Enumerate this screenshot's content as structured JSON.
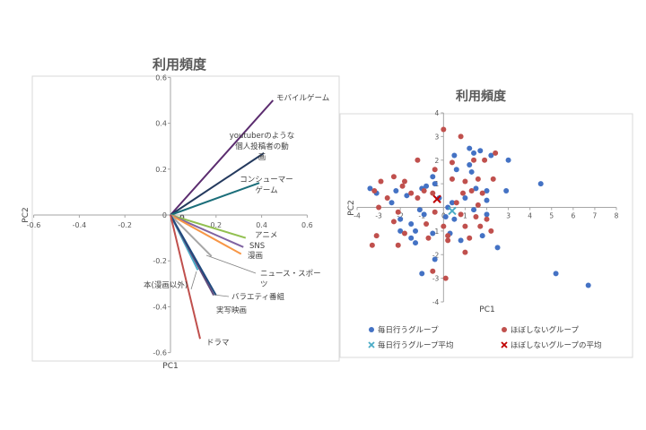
{
  "chart_data": [
    {
      "type": "vector",
      "title": "利用頻度",
      "xlabel": "PC1",
      "ylabel": "PC2",
      "xlim": [
        -0.6,
        0.6
      ],
      "ylim": [
        -0.6,
        0.6
      ],
      "xticks": [
        -0.6,
        -0.4,
        -0.2,
        0,
        0.2,
        0.4,
        0.6
      ],
      "yticks": [
        0.6,
        0.4,
        0.2,
        0,
        -0.2,
        -0.4,
        -0.6
      ],
      "vectors": [
        {
          "label": "モバイルゲーム",
          "x": 0.45,
          "y": 0.5,
          "color": "#5b2c6f"
        },
        {
          "label": "youtuberのような個人投稿者の動画",
          "x": 0.41,
          "y": 0.27,
          "color": "#243a5e"
        },
        {
          "label": "コンシューマーゲーム",
          "x": 0.39,
          "y": 0.14,
          "color": "#1b6e7a"
        },
        {
          "label": "アニメ",
          "x": 0.33,
          "y": -0.1,
          "color": "#92c050"
        },
        {
          "label": "SNS",
          "x": 0.32,
          "y": -0.14,
          "color": "#8064a2"
        },
        {
          "label": "漫画",
          "x": 0.31,
          "y": -0.17,
          "color": "#f79646"
        },
        {
          "label": "ニュース・スポーツ",
          "x": 0.18,
          "y": -0.18,
          "color": "#a6a6a6"
        },
        {
          "label": "本(漫画以外)",
          "x": 0.12,
          "y": -0.24,
          "color": "#4bacc6"
        },
        {
          "label": "バラエティ番組",
          "x": 0.19,
          "y": -0.35,
          "color": "#604a7b"
        },
        {
          "label": "実写映画",
          "x": 0.2,
          "y": -0.35,
          "color": "#1f497d"
        },
        {
          "label": "ドラマ",
          "x": 0.13,
          "y": -0.54,
          "color": "#c0504d"
        }
      ],
      "extra_ticks": [
        {
          "label": "0",
          "x": 0.04,
          "y": -0.01
        }
      ]
    },
    {
      "type": "scatter",
      "title": "利用頻度",
      "xlabel": "PC1",
      "ylabel": "PC2",
      "xlim": [
        -4,
        8
      ],
      "ylim": [
        -4,
        4
      ],
      "xticks": [
        -4,
        -3,
        -2,
        -1,
        0,
        1,
        2,
        3,
        4,
        5,
        6,
        7,
        8
      ],
      "yticks": [
        4,
        3,
        2,
        1,
        0,
        -1,
        -2,
        -3,
        -4
      ],
      "legend_position": "bottom",
      "series": [
        {
          "name": "毎日行うグループ",
          "marker": "circle",
          "color": "#4472c4",
          "points": [
            [
              1.7,
              2.4
            ],
            [
              0.5,
              2.2
            ],
            [
              1.2,
              2.5
            ],
            [
              1.4,
              2.3
            ],
            [
              2.2,
              2.2
            ],
            [
              3.0,
              2.0
            ],
            [
              1.2,
              1.8
            ],
            [
              0.6,
              1.6
            ],
            [
              1.3,
              1.5
            ],
            [
              -0.5,
              1.3
            ],
            [
              -0.4,
              1.0
            ],
            [
              -0.8,
              0.9
            ],
            [
              -1.0,
              0.8
            ],
            [
              1.5,
              0.8
            ],
            [
              2.0,
              0.7
            ],
            [
              2.9,
              0.7
            ],
            [
              4.5,
              1.0
            ],
            [
              -3.1,
              0.6
            ],
            [
              -3.4,
              0.8
            ],
            [
              -2.2,
              0.7
            ],
            [
              -1.7,
              0.5
            ],
            [
              -0.2,
              0.4
            ],
            [
              1.0,
              0.4
            ],
            [
              2.0,
              0.3
            ],
            [
              -2.4,
              0.2
            ],
            [
              0.4,
              0.2
            ],
            [
              0.2,
              0.0
            ],
            [
              -1.1,
              -0.1
            ],
            [
              -0.9,
              -0.3
            ],
            [
              1.4,
              -0.1
            ],
            [
              2.0,
              -0.3
            ],
            [
              -2.0,
              -0.5
            ],
            [
              -1.5,
              -0.7
            ],
            [
              0.1,
              -0.4
            ],
            [
              0.5,
              -0.5
            ],
            [
              -1.3,
              -1.0
            ],
            [
              -1.5,
              -1.3
            ],
            [
              -1.3,
              -1.5
            ],
            [
              -0.5,
              -1.1
            ],
            [
              0.8,
              -1.4
            ],
            [
              1.8,
              -1.2
            ],
            [
              2.5,
              -1.7
            ],
            [
              -0.4,
              -2.2
            ],
            [
              -1.0,
              -2.8
            ],
            [
              5.2,
              -2.8
            ],
            [
              6.7,
              -3.3
            ],
            [
              -2.0,
              -1.0
            ],
            [
              0.3,
              -1.1
            ]
          ]
        },
        {
          "name": "ほぼしないグループ",
          "marker": "circle",
          "color": "#c0504d",
          "points": [
            [
              0.0,
              3.3
            ],
            [
              0.8,
              3.0
            ],
            [
              0.4,
              1.9
            ],
            [
              1.4,
              2.0
            ],
            [
              1.9,
              2.0
            ],
            [
              2.4,
              2.3
            ],
            [
              -1.2,
              2.0
            ],
            [
              -0.4,
              1.6
            ],
            [
              -2.3,
              1.3
            ],
            [
              -1.8,
              1.1
            ],
            [
              -2.9,
              1.1
            ],
            [
              0.4,
              1.2
            ],
            [
              1.0,
              1.1
            ],
            [
              1.6,
              1.2
            ],
            [
              2.3,
              1.2
            ],
            [
              -3.2,
              0.7
            ],
            [
              -1.9,
              0.9
            ],
            [
              -1.5,
              0.6
            ],
            [
              -0.9,
              0.7
            ],
            [
              -0.5,
              0.6
            ],
            [
              0.9,
              0.6
            ],
            [
              1.3,
              0.7
            ],
            [
              1.8,
              0.6
            ],
            [
              -2.6,
              0.4
            ],
            [
              -1.2,
              0.4
            ],
            [
              0.6,
              0.2
            ],
            [
              1.6,
              0.1
            ],
            [
              -3.0,
              0.0
            ],
            [
              -2.1,
              -0.2
            ],
            [
              -0.4,
              -0.2
            ],
            [
              0.8,
              -0.3
            ],
            [
              1.5,
              -0.4
            ],
            [
              2.0,
              -0.5
            ],
            [
              -2.3,
              -0.6
            ],
            [
              -0.8,
              -0.7
            ],
            [
              0.0,
              -0.8
            ],
            [
              1.0,
              -0.8
            ],
            [
              1.7,
              -0.8
            ],
            [
              -3.1,
              -1.2
            ],
            [
              -1.8,
              -1.1
            ],
            [
              -0.7,
              -1.3
            ],
            [
              0.2,
              -1.2
            ],
            [
              1.2,
              -1.3
            ],
            [
              -3.3,
              -1.6
            ],
            [
              -2.1,
              -1.6
            ],
            [
              1.0,
              -1.9
            ],
            [
              -0.5,
              -2.7
            ],
            [
              0.1,
              -3.0
            ],
            [
              0.2,
              -1.4
            ],
            [
              2.2,
              -1.0
            ]
          ]
        },
        {
          "name": "毎日行うグループ平均",
          "marker": "x",
          "color": "#4bacc6",
          "points": [
            [
              0.4,
              -0.15
            ]
          ]
        },
        {
          "name": "ほぼしないグループの平均",
          "marker": "x",
          "color": "#c00000",
          "points": [
            [
              -0.3,
              0.35
            ]
          ]
        }
      ]
    }
  ]
}
